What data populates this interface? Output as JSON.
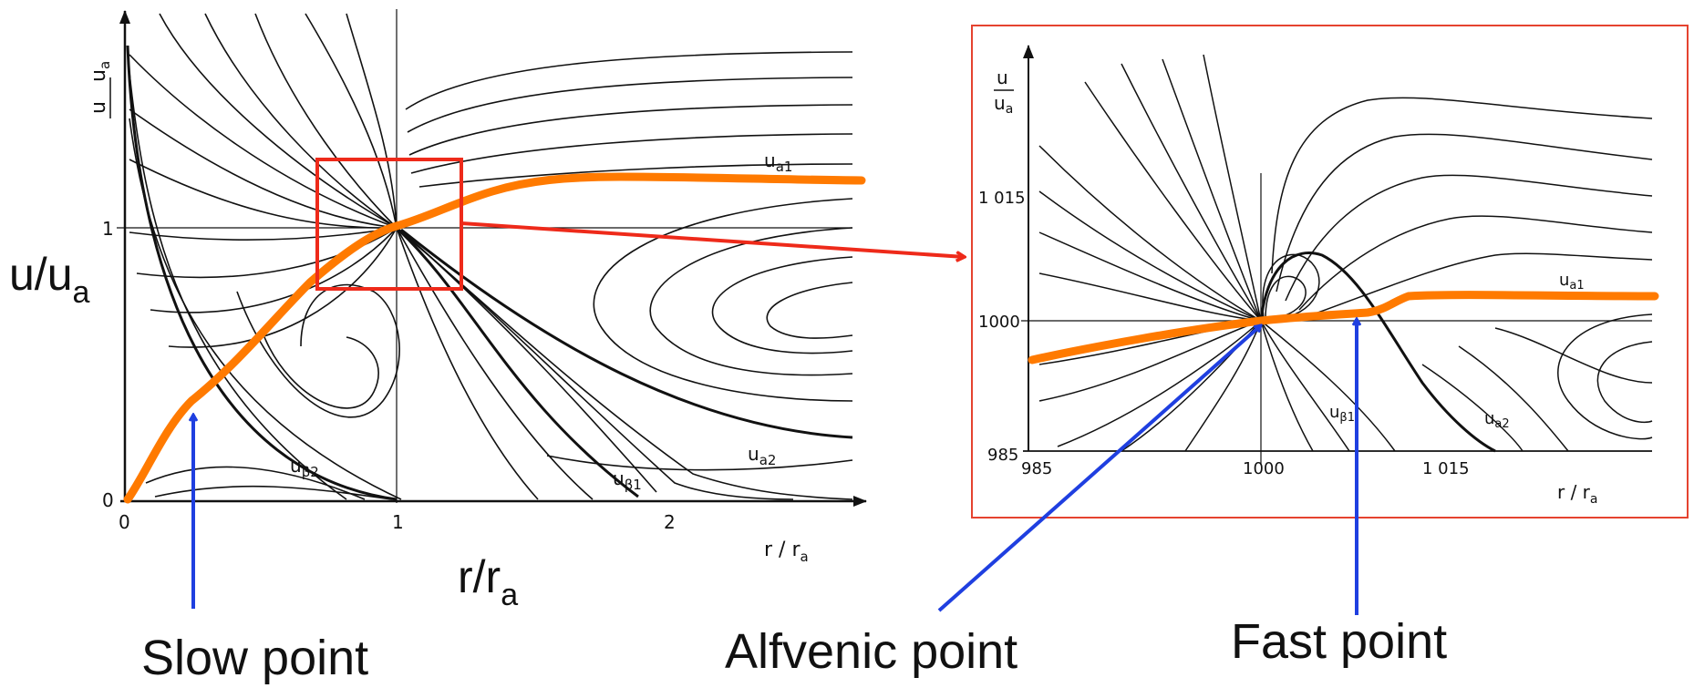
{
  "left_plot": {
    "y_axis_label": {
      "num": "u",
      "den": "u",
      "den_sub": "a"
    },
    "x_axis_label": {
      "base": "r / r",
      "sub": "a"
    },
    "y_ticks": [
      "1",
      "0"
    ],
    "x_ticks": [
      "0",
      "1",
      "2"
    ],
    "curve_labels": [
      {
        "main": "u",
        "sub": "a1"
      },
      {
        "main": "u",
        "sub": "a2"
      },
      {
        "main": "u",
        "sub": "β2"
      },
      {
        "main": "u",
        "sub": "β1"
      }
    ]
  },
  "right_plot": {
    "y_axis_label": {
      "num": "u",
      "den": "u",
      "den_sub": "a"
    },
    "x_axis_label": {
      "base": "r / r",
      "sub": "a"
    },
    "y_ticks": [
      "1 015",
      "1000",
      "985"
    ],
    "x_ticks": [
      "985",
      "1000",
      "1 015"
    ],
    "curve_labels": [
      {
        "main": "u",
        "sub": "a1"
      },
      {
        "main": "u",
        "sub": "β1"
      },
      {
        "main": "u",
        "sub": "a2"
      }
    ]
  },
  "overlay": {
    "y_label": {
      "base": "u/u",
      "sub": "a"
    },
    "x_label": {
      "base": "r/r",
      "sub": "a"
    },
    "annotations": [
      "Slow point",
      "Alfvenic point",
      "Fast point"
    ],
    "colors": {
      "highlight": "#ff7a00",
      "box": "#ee2a1a",
      "arrow": "#1f3fe0",
      "frame": "#e5432f"
    }
  }
}
